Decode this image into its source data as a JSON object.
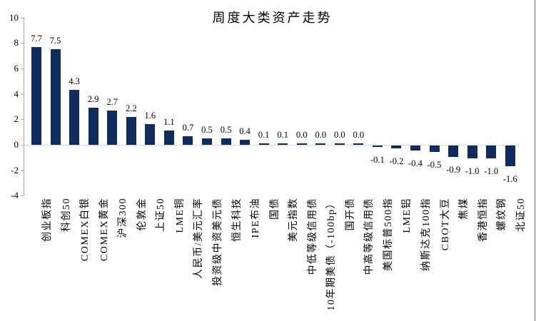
{
  "chart_data": {
    "type": "bar",
    "title": "周度大类资产走势",
    "categories": [
      "创业板指",
      "科创50",
      "COMEX白银",
      "COMEX黄金",
      "沪深300",
      "伦敦金",
      "上证50",
      "LME铜",
      "人民币/美元汇率",
      "投资级中资美元债",
      "恒生科技",
      "IPE布油",
      "国债",
      "美元指数",
      "中低等级信用债",
      "10年期美债（-100bp）",
      "国开债",
      "中高等级信用债",
      "美国标普500指",
      "LME铝",
      "纳斯达克100指",
      "CBOT大豆",
      "焦煤",
      "香港恒指",
      "螺纹钢",
      "北证50"
    ],
    "values": [
      7.7,
      7.5,
      4.3,
      2.9,
      2.7,
      2.2,
      1.6,
      1.1,
      0.7,
      0.5,
      0.5,
      0.4,
      0.1,
      0.1,
      0.0,
      0.0,
      0.0,
      0.0,
      -0.1,
      -0.2,
      -0.4,
      -0.5,
      -0.9,
      -1.0,
      -1.0,
      -1.6
    ],
    "xlabel": "",
    "ylabel": "",
    "ylim": [
      -4,
      10
    ],
    "yticks": [
      10,
      8,
      6,
      4,
      2,
      0,
      -2,
      -4
    ],
    "grid": "zero-line-only",
    "legend": "none",
    "value_labels": "outside-end, one decimal",
    "category_label_rotation": "90deg-reading-bottom-to-top",
    "bar_color": "#0F2C5C",
    "axis_color": "#A6A6A6",
    "gridline_color": "#D9D9D9",
    "text_color": "#000000"
  }
}
